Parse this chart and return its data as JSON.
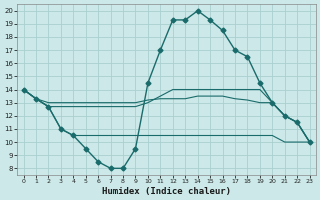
{
  "xlabel": "Humidex (Indice chaleur)",
  "bg_color": "#cce8e8",
  "grid_color": "#aacfcf",
  "line_color": "#1a6b6b",
  "xlim": [
    -0.5,
    23.5
  ],
  "ylim": [
    7.5,
    20.5
  ],
  "xticks": [
    0,
    1,
    2,
    3,
    4,
    5,
    6,
    7,
    8,
    9,
    10,
    11,
    12,
    13,
    14,
    15,
    16,
    17,
    18,
    19,
    20,
    21,
    22,
    23
  ],
  "yticks": [
    8,
    9,
    10,
    11,
    12,
    13,
    14,
    15,
    16,
    17,
    18,
    19,
    20
  ],
  "series": [
    {
      "x": [
        0,
        1,
        2,
        3,
        4,
        5,
        6,
        7,
        8,
        9,
        10,
        11,
        12,
        13,
        14,
        15,
        16,
        17,
        18,
        19,
        20,
        21,
        22,
        23
      ],
      "y": [
        14,
        13.3,
        12.7,
        11.0,
        10.5,
        9.5,
        8.5,
        8.0,
        8.0,
        9.5,
        14.5,
        17.0,
        19.3,
        19.3,
        20.0,
        19.3,
        18.5,
        17.0,
        16.5,
        14.5,
        13.0,
        12.0,
        11.5,
        10.0
      ],
      "marker": "D",
      "markersize": 2.5,
      "linewidth": 1.0
    },
    {
      "x": [
        0,
        1,
        2,
        3,
        4,
        5,
        6,
        7,
        8,
        9,
        10,
        11,
        12,
        13,
        14,
        15,
        16,
        17,
        18,
        19,
        20,
        21,
        22,
        23
      ],
      "y": [
        14,
        13.3,
        13.0,
        13.0,
        13.0,
        13.0,
        13.0,
        13.0,
        13.0,
        13.0,
        13.2,
        13.3,
        13.3,
        13.3,
        13.5,
        13.5,
        13.5,
        13.3,
        13.2,
        13.0,
        13.0,
        12.0,
        11.5,
        10.0
      ],
      "marker": null,
      "linewidth": 0.8
    },
    {
      "x": [
        0,
        1,
        2,
        3,
        4,
        5,
        6,
        7,
        8,
        9,
        10,
        11,
        12,
        13,
        14,
        15,
        16,
        17,
        18,
        19,
        20,
        21,
        22,
        23
      ],
      "y": [
        14,
        13.3,
        12.7,
        12.7,
        12.7,
        12.7,
        12.7,
        12.7,
        12.7,
        12.7,
        13.0,
        13.5,
        14.0,
        14.0,
        14.0,
        14.0,
        14.0,
        14.0,
        14.0,
        14.0,
        13.0,
        12.0,
        11.5,
        10.0
      ],
      "marker": null,
      "linewidth": 0.8
    },
    {
      "x": [
        0,
        1,
        2,
        3,
        4,
        5,
        6,
        7,
        8,
        9,
        10,
        11,
        12,
        13,
        14,
        15,
        16,
        17,
        18,
        19,
        20,
        21,
        22,
        23
      ],
      "y": [
        14,
        13.3,
        12.7,
        11.0,
        10.5,
        10.5,
        10.5,
        10.5,
        10.5,
        10.5,
        10.5,
        10.5,
        10.5,
        10.5,
        10.5,
        10.5,
        10.5,
        10.5,
        10.5,
        10.5,
        10.5,
        10.0,
        10.0,
        10.0
      ],
      "marker": null,
      "linewidth": 0.8
    }
  ]
}
